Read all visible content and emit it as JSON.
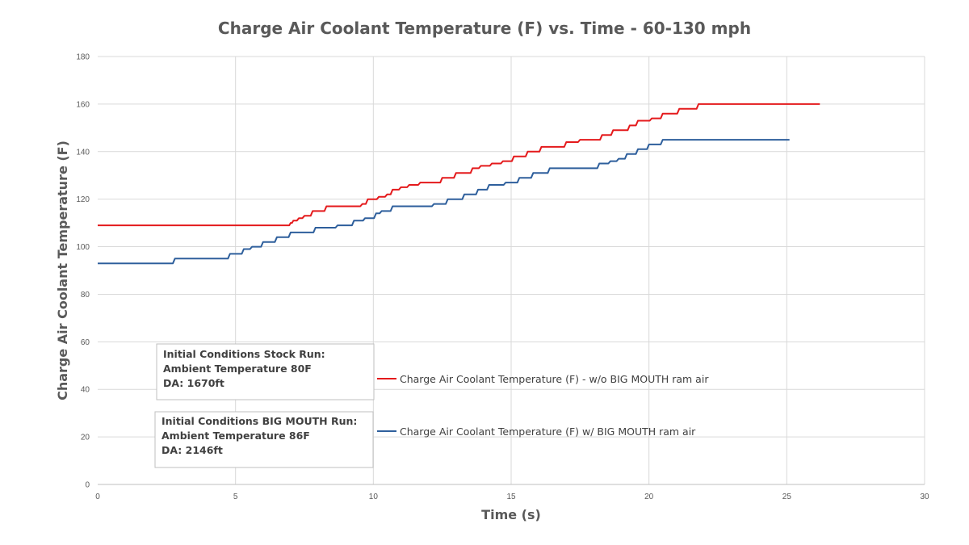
{
  "chart_data": {
    "type": "line",
    "title": "Charge Air Coolant Temperature (F) vs. Time - 60-130 mph",
    "xlabel": "Time (s)",
    "ylabel": "Charge Air Coolant Temperature (F)",
    "xlim": [
      0,
      30
    ],
    "ylim": [
      0,
      180
    ],
    "xticks": [
      0,
      5,
      10,
      15,
      20,
      25,
      30
    ],
    "yticks": [
      0,
      20,
      40,
      60,
      80,
      100,
      120,
      140,
      160,
      180
    ],
    "grid": true,
    "legend_position": "center-right",
    "series": [
      {
        "name": "Charge Air Coolant Temperature (F) - w/o BIG MOUTH ram air",
        "color": "#e41a1c",
        "x": [
          0,
          6.9,
          7.0,
          7.1,
          7.3,
          7.5,
          7.8,
          8.3,
          8.9,
          9.6,
          9.8,
          10.2,
          10.5,
          10.7,
          11.0,
          11.3,
          11.7,
          12.5,
          13.0,
          13.6,
          13.9,
          14.3,
          14.7,
          15.1,
          15.6,
          16.1,
          17.0,
          17.5,
          18.3,
          18.7,
          19.3,
          19.6,
          20.1,
          20.5,
          21.1,
          21.8,
          26.2
        ],
        "y": [
          109,
          109,
          110,
          111,
          112,
          113,
          115,
          117,
          117,
          118,
          120,
          121,
          122,
          124,
          125,
          126,
          127,
          129,
          131,
          133,
          134,
          135,
          136,
          138,
          140,
          142,
          144,
          145,
          147,
          149,
          151,
          153,
          154,
          156,
          158,
          160,
          160
        ]
      },
      {
        "name": "Charge Air Coolant Temperature (F) w/ BIG MOUTH ram air",
        "color": "#2e5f9c",
        "x": [
          0,
          2.8,
          4.8,
          5.3,
          5.6,
          6.0,
          6.5,
          7.0,
          7.9,
          8.7,
          9.3,
          9.7,
          10.1,
          10.3,
          10.7,
          11.2,
          12.2,
          12.7,
          13.3,
          13.8,
          14.2,
          14.8,
          15.3,
          15.8,
          16.4,
          17.7,
          18.2,
          18.6,
          18.9,
          19.2,
          19.6,
          20.0,
          20.5,
          25.1
        ],
        "y": [
          93,
          95,
          97,
          99,
          100,
          102,
          104,
          106,
          108,
          109,
          111,
          112,
          114,
          115,
          117,
          117,
          118,
          120,
          122,
          124,
          126,
          127,
          129,
          131,
          133,
          133,
          135,
          136,
          137,
          139,
          141,
          143,
          145,
          145
        ]
      }
    ],
    "annotations": [
      {
        "lines": [
          "Initial Conditions Stock Run:",
          "Ambient Temperature 80F",
          "DA: 1670ft"
        ]
      },
      {
        "lines": [
          "Initial Conditions BIG MOUTH Run:",
          "Ambient Temperature 86F",
          "DA: 2146ft"
        ]
      }
    ]
  }
}
